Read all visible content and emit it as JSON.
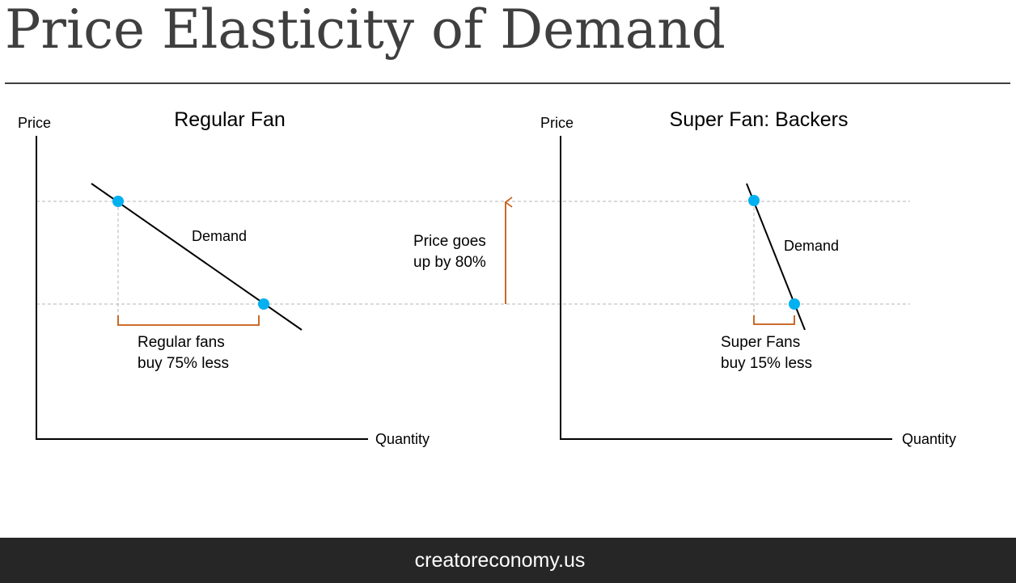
{
  "title": "Price Elasticity of Demand",
  "footer": {
    "text": "creatoreconomy.us"
  },
  "colors": {
    "point": "#00b0f0",
    "bracket": "#c55a11",
    "arrow": "#c55a11",
    "axis": "#000000",
    "guide": "#b4b4b4",
    "title": "#3f3f3f",
    "footer_bg": "#262626"
  },
  "left_panel": {
    "title": "Regular Fan",
    "y_axis_label": "Price",
    "x_axis_label": "Quantity",
    "curve_label": "Demand",
    "bracket_label_line1": "Regular fans",
    "bracket_label_line2": "buy 75% less"
  },
  "middle": {
    "arrow_label_line1": "Price goes",
    "arrow_label_line2": "up by 80%"
  },
  "right_panel": {
    "title": "Super Fan: Backers",
    "y_axis_label": "Price",
    "x_axis_label": "Quantity",
    "curve_label": "Demand",
    "bracket_label_line1": "Super Fans",
    "bracket_label_line2": "buy 15% less"
  }
}
